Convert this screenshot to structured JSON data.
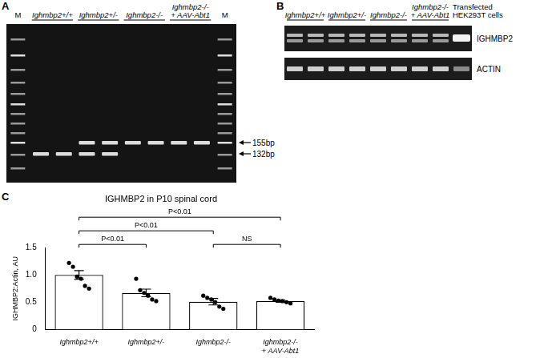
{
  "panels": {
    "A": {
      "label": "A",
      "lanes": [
        {
          "group": "M",
          "ladder": true
        },
        {
          "group": "Ighmbp2+/+",
          "bands": [
            "132bp"
          ]
        },
        {
          "group": "Ighmbp2+/+",
          "bands": [
            "132bp"
          ]
        },
        {
          "group": "Ighmbp2+/-",
          "bands": [
            "155bp",
            "132bp"
          ]
        },
        {
          "group": "Ighmbp2+/-",
          "bands": [
            "155bp",
            "132bp"
          ]
        },
        {
          "group": "Ighmbp2-/-",
          "bands": [
            "155bp"
          ]
        },
        {
          "group": "Ighmbp2-/-",
          "bands": [
            "155bp"
          ]
        },
        {
          "group": "Ighmbp2-/- + AAV-Abt1",
          "bands": [
            "155bp"
          ]
        },
        {
          "group": "Ighmbp2-/- + AAV-Abt1",
          "bands": [
            "155bp"
          ]
        },
        {
          "group": "M",
          "ladder": true
        }
      ],
      "bands": [
        "155bp",
        "132bp"
      ]
    },
    "B": {
      "label": "B",
      "lanes": [
        {
          "group": "Ighmbp2+/+"
        },
        {
          "group": "Ighmbp2+/+"
        },
        {
          "group": "Ighmbp2+/-"
        },
        {
          "group": "Ighmbp2+/-"
        },
        {
          "group": "Ighmbp2-/-"
        },
        {
          "group": "Ighmbp2-/-"
        },
        {
          "group": "Ighmbp2-/- + AAV-Abt1"
        },
        {
          "group": "Ighmbp2-/- + AAV-Abt1"
        },
        {
          "group": "Transfected HEK293T cells"
        }
      ],
      "rows": [
        "IGHMBP2",
        "ACTIN"
      ]
    },
    "C": {
      "label": "C"
    }
  },
  "chart_data": {
    "type": "bar",
    "title": "IGHMBP2 in P10 spinal cord",
    "y_label": "IGHMBP2:Actin, AU",
    "categories": [
      "Ighmbp2+/+",
      "Ighmbp2+/-",
      "Ighmbp2-/-",
      "Ighmbp2-/- + AAV-Abt1"
    ],
    "values": [
      1.0,
      0.67,
      0.51,
      0.52
    ],
    "errors": [
      0.08,
      0.07,
      0.06,
      0.02
    ],
    "points": [
      [
        1.22,
        1.15,
        0.97,
        0.93,
        0.8,
        0.75
      ],
      [
        0.93,
        0.72,
        0.67,
        0.62,
        0.55,
        0.52
      ],
      [
        0.62,
        0.58,
        0.55,
        0.5,
        0.42,
        0.38
      ],
      [
        0.58,
        0.55,
        0.53,
        0.52,
        0.5,
        0.48
      ]
    ],
    "color": "#ffffff",
    "ylim": [
      0,
      1.5
    ],
    "yticks": [
      0,
      0.5,
      {
        "value": 1,
        "label": "1.0"
      },
      1.5
    ],
    "grid": false,
    "annotations": [
      {
        "from": 0,
        "to": 3,
        "label": "P<0.01"
      },
      {
        "from": 0,
        "to": 2,
        "label": "P<0.01"
      },
      {
        "from": 0,
        "to": 1,
        "label": "P<0.01"
      },
      {
        "from": 2,
        "to": 3,
        "label": "NS"
      }
    ]
  }
}
